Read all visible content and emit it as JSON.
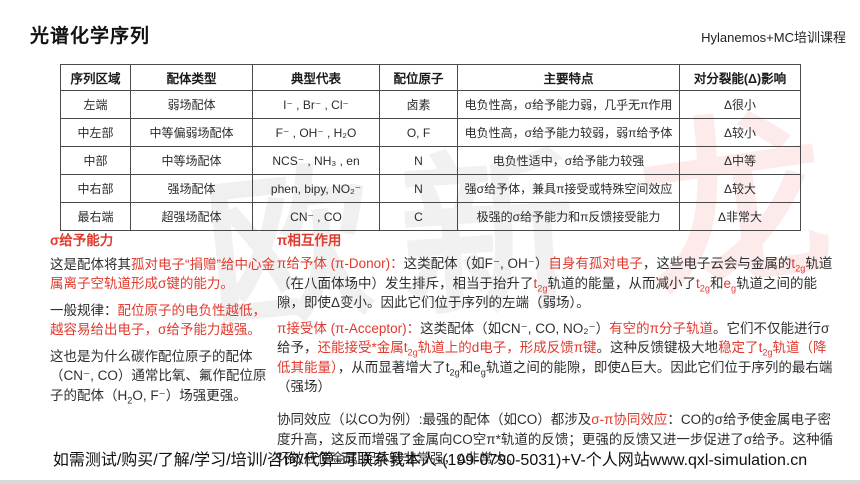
{
  "page": {
    "title": "光谱化学序列",
    "header_right": "Hylanemos+MC培训课程",
    "footer": "如需测试/购买/了解/学习/培训/咨询/代算-可联系我本人-(199-0790-5031)+V-个人网站www.qxl-simulation.cn"
  },
  "colors": {
    "accent_red": "#e03a2e",
    "text_black": "#2e2e2e",
    "table_border": "#4a4a4a"
  },
  "watermark": [
    "欧",
    "新",
    "龙"
  ],
  "table": {
    "headers": [
      "序列区域",
      "配体类型",
      "典型代表",
      "配位原子",
      "主要特点",
      "对分裂能(Δ)影响"
    ],
    "rows": [
      [
        "左端",
        "弱场配体",
        "I⁻ , Br⁻ , Cl⁻",
        "卤素",
        "电负性高，σ给予能力弱，几乎无π作用",
        "Δ很小"
      ],
      [
        "中左部",
        "中等偏弱场配体",
        "F⁻ , OH⁻ , H₂O",
        "O, F",
        "电负性高，σ给予能力较弱，弱π给予体",
        "Δ较小"
      ],
      [
        "中部",
        "中等场配体",
        "NCS⁻ , NH₃ , en",
        "N",
        "电负性适中，σ给予能力较强",
        "Δ中等"
      ],
      [
        "中右部",
        "强场配体",
        "phen, bipy, NO₂⁻",
        "N",
        "强σ给予体，兼具π接受或特殊空间效应",
        "Δ较大"
      ],
      [
        "最右端",
        "超强场配体",
        "CN⁻ , CO",
        "C",
        "极强的σ给予能力和π反馈接受能力",
        "Δ非常大"
      ]
    ]
  },
  "left_column": {
    "heading": "σ给予能力",
    "para1": [
      {
        "t": "这是配体将其",
        "c": "k"
      },
      {
        "t": "孤对电子“捐赠”给中心金属离子空轨道形成σ键的能力。",
        "c": "r"
      }
    ],
    "para2": [
      {
        "t": "一般规律：",
        "c": "k"
      },
      {
        "t": "配位原子的电负性越低，越容易给出电子，σ给予能力越强。",
        "c": "r"
      }
    ],
    "para3": [
      {
        "t": "这也是为什么碳作配位原子的配体（CN⁻, CO）通常比氧、氟作配位原子的配体（H",
        "c": "k"
      },
      {
        "t": "2",
        "c": "k",
        "sub": true
      },
      {
        "t": "O, F⁻）场强更强。",
        "c": "k"
      }
    ]
  },
  "right_column": {
    "heading": "π相互作用",
    "para_donor": [
      {
        "t": "π给予体 (π-Donor)：",
        "c": "r"
      },
      {
        "t": "这类配体（如F⁻, OH⁻）",
        "c": "k"
      },
      {
        "t": "自身有孤对电子",
        "c": "r"
      },
      {
        "t": "，这些电子云会与金属的",
        "c": "k"
      },
      {
        "t": "t",
        "c": "r"
      },
      {
        "t": "2g",
        "c": "r",
        "sub": true
      },
      {
        "t": "轨道（在八面体场中）发生排斥，相当于抬升了",
        "c": "k"
      },
      {
        "t": "t",
        "c": "r"
      },
      {
        "t": "2g",
        "c": "r",
        "sub": true
      },
      {
        "t": "轨道的能量，从而减小了",
        "c": "k"
      },
      {
        "t": "t",
        "c": "r"
      },
      {
        "t": "2g",
        "c": "r",
        "sub": true
      },
      {
        "t": "和",
        "c": "k"
      },
      {
        "t": "e",
        "c": "r"
      },
      {
        "t": "g",
        "c": "r",
        "sub": true
      },
      {
        "t": "轨道之间的能隙，即使Δ变小。因此它们位于序列的左端（弱场）。",
        "c": "k"
      }
    ],
    "para_acceptor": [
      {
        "t": "π接受体 (π-Acceptor)：",
        "c": "r"
      },
      {
        "t": "这类配体（如CN⁻, CO, NO₂⁻）",
        "c": "k"
      },
      {
        "t": "有空的π分子轨道",
        "c": "r"
      },
      {
        "t": "。它们不仅能进行σ给予，",
        "c": "k"
      },
      {
        "t": "还能接受*金属",
        "c": "r"
      },
      {
        "t": "t",
        "c": "r"
      },
      {
        "t": "2g",
        "c": "r",
        "sub": true
      },
      {
        "t": "轨道上的d电子，形成反馈π键",
        "c": "r"
      },
      {
        "t": "。这种反馈键极大地",
        "c": "k"
      },
      {
        "t": "稳定了",
        "c": "r"
      },
      {
        "t": "t",
        "c": "r"
      },
      {
        "t": "2g",
        "c": "r",
        "sub": true
      },
      {
        "t": "轨道（降低其能量）",
        "c": "r"
      },
      {
        "t": "，从而显著增大了",
        "c": "k"
      },
      {
        "t": "t",
        "c": "k"
      },
      {
        "t": "2g",
        "c": "k",
        "sub": true
      },
      {
        "t": "和",
        "c": "k"
      },
      {
        "t": "e",
        "c": "k"
      },
      {
        "t": "g",
        "c": "k",
        "sub": true
      },
      {
        "t": "轨道之间的能隙，即使Δ巨大。因此它们位于序列的最右端（强场）",
        "c": "k"
      }
    ],
    "para_synergy": [
      {
        "t": "协同效应（以CO为例）:最强的配体（如CO）都涉及",
        "c": "k"
      },
      {
        "t": "σ-π协同效应",
        "c": "r"
      },
      {
        "t": "：CO的σ给予使金属电子密度升高，这反而增强了金属向CO空π*轨道的反馈；更强的反馈又进一步促进了σ给予。这种循环效应使金属-配体键非常强，Δ非常大。",
        "c": "k"
      }
    ]
  }
}
